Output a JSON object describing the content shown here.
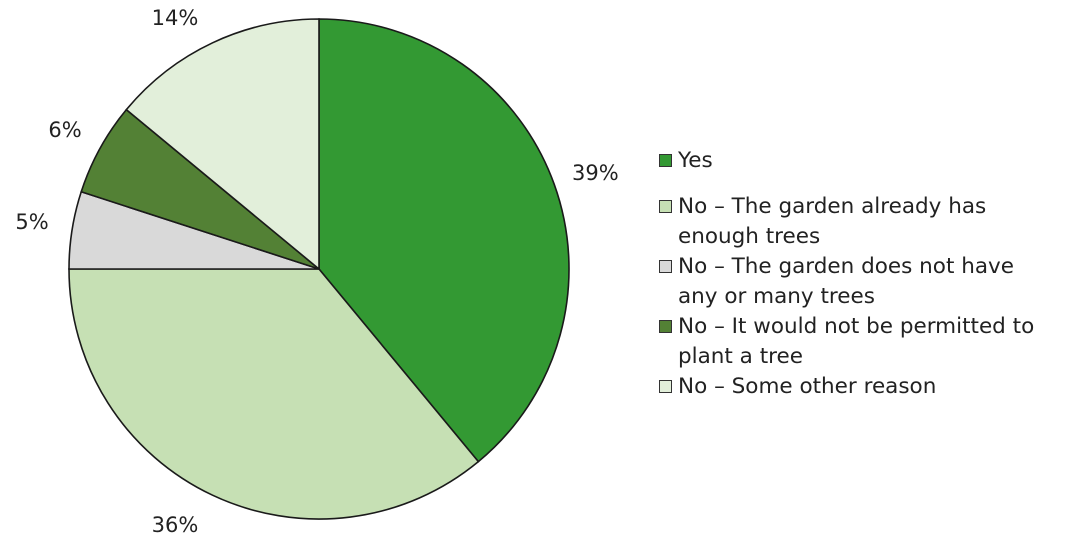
{
  "chart_data": {
    "type": "pie",
    "title": "",
    "slices": [
      {
        "label": "Yes",
        "value": 39,
        "value_label": "39%",
        "color": "#339933"
      },
      {
        "label": "No – The garden already has enough trees",
        "value": 36,
        "value_label": "36%",
        "color": "#c6e0b4"
      },
      {
        "label": "No – The garden does not have any or many trees",
        "value": 5,
        "value_label": "5%",
        "color": "#d9d9d9"
      },
      {
        "label": "No – It would not be permitted to plant a tree",
        "value": 6,
        "value_label": "6%",
        "color": "#538135"
      },
      {
        "label": "No – Some other reason",
        "value": 14,
        "value_label": "14%",
        "color": "#e2efda"
      }
    ],
    "start_angle_deg": 0,
    "direction": "clockwise",
    "legend_position": "right"
  },
  "legend": {
    "items": [
      [
        "Yes"
      ],
      [
        "No – The garden already has",
        "enough trees"
      ],
      [
        "No – The garden does not have",
        "any or many trees"
      ],
      [
        "No – It would not be permitted to",
        "plant a tree"
      ],
      [
        "No – Some other reason"
      ]
    ]
  }
}
